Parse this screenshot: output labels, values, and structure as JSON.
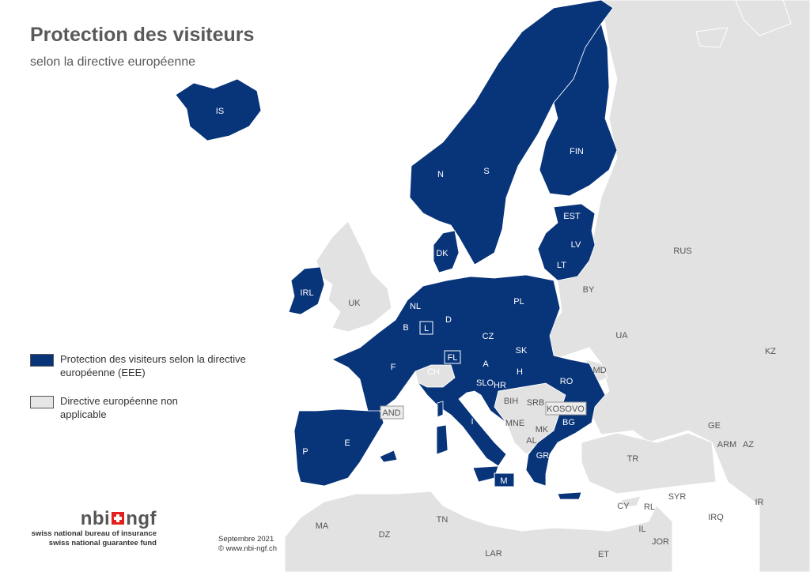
{
  "title": "Protection des visiteurs",
  "subtitle": "selon la directive européenne",
  "colors": {
    "protected": "#08347a",
    "not_applicable": "#e6e6e6",
    "other_land": "#e2e2e2",
    "sea": "#ffffff",
    "border": "#ffffff"
  },
  "legend": [
    {
      "label": "Protection des visiteurs selon la directive européenne (EEE)",
      "color": "#08347a"
    },
    {
      "label": "Directive européenne non applicable",
      "color": "#e6e6e6"
    }
  ],
  "countries_protected": [
    "IS",
    "N",
    "S",
    "FIN",
    "EST",
    "LV",
    "LT",
    "DK",
    "IRL",
    "NL",
    "B",
    "L",
    "D",
    "PL",
    "CZ",
    "SK",
    "FL",
    "A",
    "H",
    "SLO",
    "HR",
    "RO",
    "BG",
    "GR",
    "F",
    "E",
    "P",
    "I",
    "M"
  ],
  "countries_not_applicable": [
    "UK",
    "CH",
    "AND",
    "BIH",
    "SRB",
    "MNE",
    "KOSOVO",
    "MK",
    "AL",
    "MD",
    "BY",
    "UA",
    "RUS",
    "TR",
    "KZ",
    "GE",
    "ARM",
    "AZ",
    "CY",
    "RL",
    "SYR",
    "IRQ",
    "IR",
    "IL",
    "JOR",
    "MA",
    "DZ",
    "TN",
    "LAR",
    "ET"
  ],
  "boxed_labels": [
    "L",
    "FL",
    "AND",
    "KOSOVO",
    "M"
  ],
  "logo": {
    "brand_left": "nbi",
    "brand_right": "ngf",
    "line1": "swiss national bureau of insurance",
    "line2": "swiss national guarantee fund"
  },
  "footer": {
    "date": "Septembre 2021",
    "website": "© www.nbi-ngf.ch"
  }
}
